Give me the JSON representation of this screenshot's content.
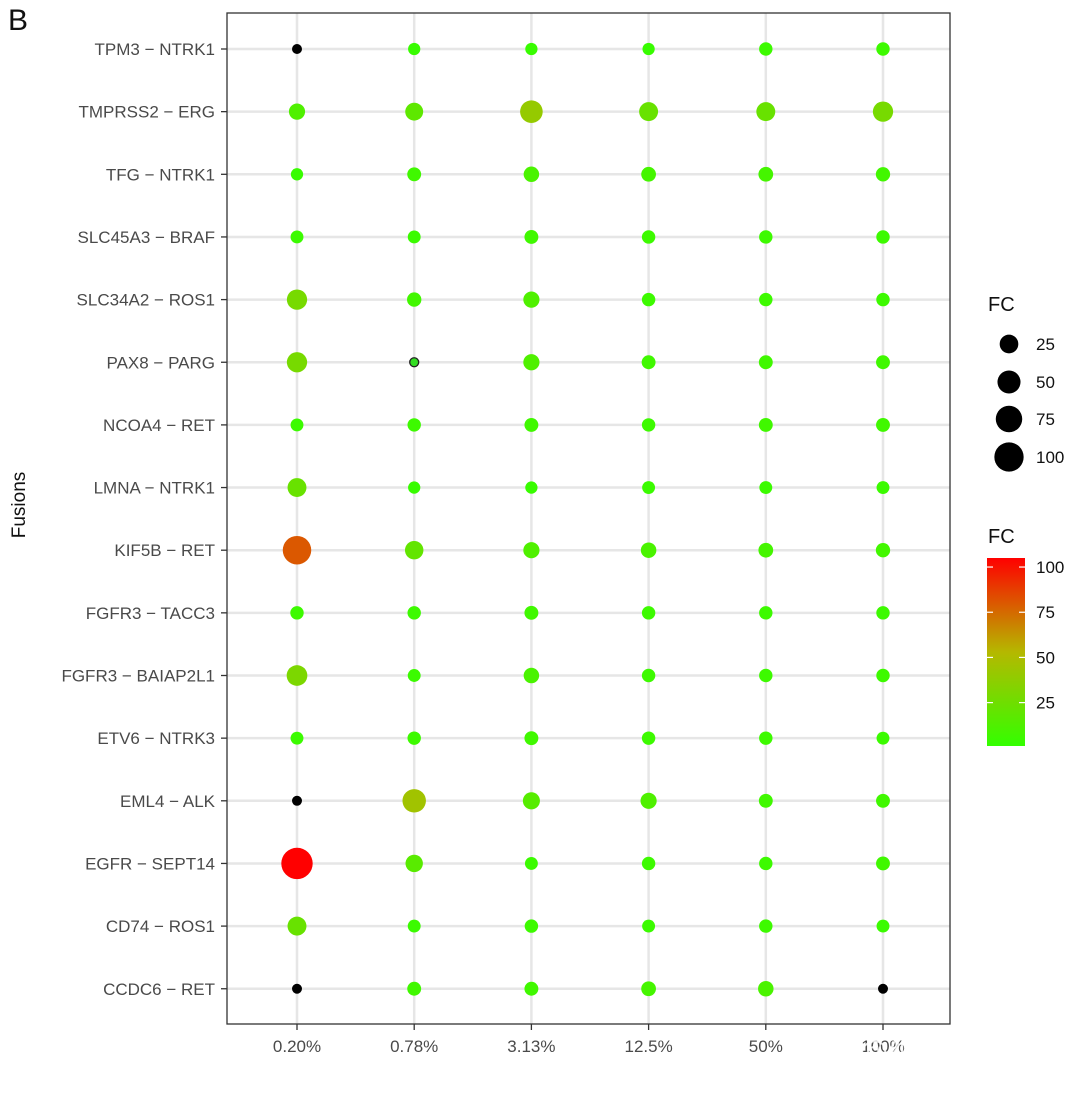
{
  "panel_label": "B",
  "watermark": "知乎 @纳昂达科技",
  "chart_data": {
    "type": "scatter",
    "ylabel": "Fusions",
    "xlabel": "",
    "x_categories": [
      "0.20%",
      "0.78%",
      "3.13%",
      "12.5%",
      "50%",
      "100%"
    ],
    "y_categories": [
      "TPM3 − NTRK1",
      "TMPRSS2 − ERG",
      "TFG − NTRK1",
      "SLC45A3 − BRAF",
      "SLC34A2 − ROS1",
      "PAX8 − PARG",
      "NCOA4 − RET",
      "LMNA − NTRK1",
      "KIF5B − RET",
      "FGFR3 − TACC3",
      "FGFR3 − BAIAP2L1",
      "ETV6 − NTRK3",
      "EML4 − ALK",
      "EGFR − SEPT14",
      "CD74 − ROS1",
      "CCDC6 − RET"
    ],
    "size_legend": {
      "title": "FC",
      "values": [
        25,
        50,
        75,
        100
      ]
    },
    "color_legend": {
      "title": "FC",
      "ticks": [
        100,
        75,
        50,
        25
      ],
      "low_color": "#33ff00",
      "high_color": "#ff0000",
      "mid_color": "#b5b800",
      "range": [
        1,
        105
      ]
    },
    "na_color": "#000000",
    "grid": true,
    "legend_position": "right",
    "points": [
      {
        "y": "TPM3 − NTRK1",
        "values": [
          null,
          3,
          3,
          3,
          5,
          5
        ]
      },
      {
        "y": "TMPRSS2 − ERG",
        "values": [
          12,
          18,
          40,
          22,
          22,
          28
        ]
      },
      {
        "y": "TFG − NTRK1",
        "values": [
          3,
          6,
          10,
          8,
          8,
          7
        ]
      },
      {
        "y": "SLC45A3 − BRAF",
        "values": [
          4,
          4,
          6,
          5,
          5,
          5
        ]
      },
      {
        "y": "SLC34A2 − ROS1",
        "values": [
          28,
          7,
          12,
          5,
          5,
          5
        ]
      },
      {
        "y": "PAX8 − PARG",
        "values": [
          28,
          null,
          12,
          6,
          6,
          6
        ]
      },
      {
        "y": "NCOA4 − RET",
        "values": [
          4,
          5,
          6,
          5,
          6,
          6
        ]
      },
      {
        "y": "LMNA − NTRK1",
        "values": [
          22,
          3,
          3,
          4,
          4,
          4
        ]
      },
      {
        "y": "KIF5B − RET",
        "values": [
          80,
          20,
          12,
          10,
          8,
          7
        ]
      },
      {
        "y": "FGFR3 − TACC3",
        "values": [
          5,
          5,
          6,
          5,
          5,
          5
        ]
      },
      {
        "y": "FGFR3 − BAIAP2L1",
        "values": [
          30,
          4,
          10,
          5,
          5,
          5
        ]
      },
      {
        "y": "ETV6 − NTRK3",
        "values": [
          4,
          5,
          6,
          5,
          5,
          4
        ]
      },
      {
        "y": "EML4 − ALK",
        "values": [
          null,
          45,
          15,
          12,
          6,
          6
        ]
      },
      {
        "y": "EGFR − SEPT14",
        "values": [
          105,
          16,
          4,
          5,
          5,
          6
        ]
      },
      {
        "y": "CD74 − ROS1",
        "values": [
          22,
          4,
          5,
          4,
          5,
          4
        ]
      },
      {
        "y": "CCDC6 − RET",
        "values": [
          null,
          6,
          6,
          8,
          10,
          null
        ]
      }
    ]
  }
}
